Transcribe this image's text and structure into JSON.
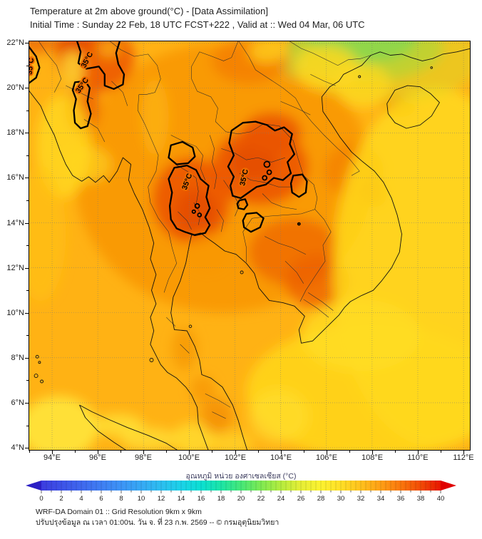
{
  "header": {
    "title": "Temperature at 2m above ground(°C) - [Data Assimilation]",
    "subtitle": "Initial Time : Sunday 22 Feb, 18 UTC FCST+222 , Valid at :: Wed 04 Mar, 06 UTC"
  },
  "map": {
    "lat_tick_labels": [
      "22°N",
      "20°N",
      "18°N",
      "16°N",
      "14°N",
      "12°N",
      "10°N",
      "8°N",
      "6°N",
      "4°N"
    ],
    "lon_tick_labels": [
      "94°E",
      "96°E",
      "98°E",
      "100°E",
      "102°E",
      "104°E",
      "106°E",
      "108°E",
      "110°E",
      "112°E"
    ],
    "contour_label": "35°C",
    "contour_level_c": 35
  },
  "colorbar": {
    "label": "อุณหภูมิ หน่วย องศาเซลเซียส (°C)",
    "min": 0,
    "max": 40,
    "tick_labels": [
      "0",
      "2",
      "4",
      "6",
      "8",
      "10",
      "12",
      "14",
      "16",
      "18",
      "20",
      "22",
      "24",
      "26",
      "28",
      "30",
      "32",
      "34",
      "36",
      "38",
      "40"
    ],
    "under_color": "#2b1fc4",
    "over_color": "#e00000",
    "gradient": [
      {
        "value": 0,
        "color": "#3c3ce0"
      },
      {
        "value": 2,
        "color": "#3d52e8"
      },
      {
        "value": 4,
        "color": "#3f68ee"
      },
      {
        "value": 6,
        "color": "#3f7ef3"
      },
      {
        "value": 8,
        "color": "#3d94f6"
      },
      {
        "value": 10,
        "color": "#36a9f4"
      },
      {
        "value": 12,
        "color": "#2cbef0"
      },
      {
        "value": 14,
        "color": "#1bd2e8"
      },
      {
        "value": 16,
        "color": "#0adfd2"
      },
      {
        "value": 18,
        "color": "#1ce5a6"
      },
      {
        "value": 20,
        "color": "#45e878"
      },
      {
        "value": 22,
        "color": "#7eea52"
      },
      {
        "value": 24,
        "color": "#b5ec3e"
      },
      {
        "value": 26,
        "color": "#e6ee36"
      },
      {
        "value": 28,
        "color": "#fcf22f"
      },
      {
        "value": 30,
        "color": "#ffdf26"
      },
      {
        "value": 32,
        "color": "#ffc11d"
      },
      {
        "value": 34,
        "color": "#ff9f15"
      },
      {
        "value": 36,
        "color": "#fa770c"
      },
      {
        "value": 38,
        "color": "#f24b05"
      },
      {
        "value": 40,
        "color": "#e81600"
      }
    ]
  },
  "footer": {
    "line1": "WRF-DA Domain 01 :: Grid Resolution 9km x 9km",
    "line2": "ปรับปรุงข้อมูล ณ เวลา 01:00น. วัน จ. ที่ 23 ก.พ. 2569 -- © กรมอุตุนิยมวิทยา"
  },
  "chart_data": {
    "type": "heatmap",
    "title": "Temperature at 2m above ground(°C) - [Data Assimilation]",
    "x_ticks": [
      "94°E",
      "96°E",
      "98°E",
      "100°E",
      "102°E",
      "104°E",
      "106°E",
      "108°E",
      "110°E",
      "112°E"
    ],
    "y_ticks": [
      "4°N",
      "6°N",
      "8°N",
      "10°N",
      "12°N",
      "14°N",
      "16°N",
      "18°N",
      "20°N",
      "22°N"
    ],
    "xlim": [
      "94°E",
      "112°E"
    ],
    "ylim": [
      "4°N",
      "22°N"
    ],
    "grid": true,
    "colorbar": {
      "label": "อุณหภูมิ หน่วย องศาเซลเซียส (°C)",
      "min": 0,
      "max": 40,
      "tick_step": 2,
      "extend": "both"
    },
    "contour_levels_c": [
      35
    ],
    "readings_c": [
      {
        "region": "central Thailand (inside 35°C contour)",
        "approx_temp_c": 35.5
      },
      {
        "region": "northeast Thailand / southern Laos (inside 35°C contour)",
        "approx_temp_c": 35.5
      },
      {
        "region": "northern Myanmar (inside 35°C contour)",
        "approx_temp_c": 35.5
      },
      {
        "region": "Cambodia / southern Vietnam",
        "approx_temp_c": 34
      },
      {
        "region": "Red River delta, northern Vietnam",
        "approx_temp_c": 30
      },
      {
        "region": "southern China coast (green area)",
        "approx_temp_c": 24
      },
      {
        "region": "Andaman Sea",
        "approx_temp_c": 31.5
      },
      {
        "region": "Gulf of Thailand",
        "approx_temp_c": 31.5
      },
      {
        "region": "South China Sea",
        "approx_temp_c": 30
      }
    ]
  }
}
